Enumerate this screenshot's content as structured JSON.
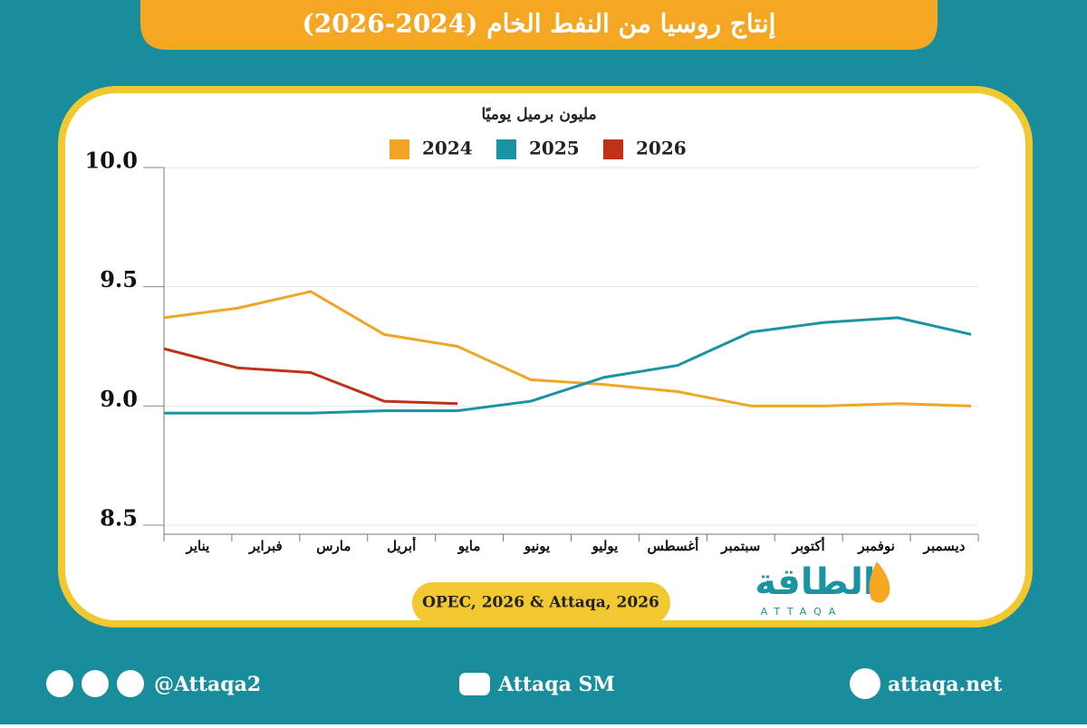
{
  "chart_data": {
    "type": "line",
    "title": "إنتاج روسيا من النفط الخام (2024-2026)",
    "y_label": "مليون برميل يوميًا",
    "categories": [
      "يناير",
      "فبراير",
      "مارس",
      "أبريل",
      "مايو",
      "يونيو",
      "يوليو",
      "أغسطس",
      "سبتمبر",
      "أكتوبر",
      "نوفمبر",
      "ديسمبر"
    ],
    "series": [
      {
        "name": "2024",
        "color": "#f0a524",
        "values": [
          9.37,
          9.41,
          9.48,
          9.3,
          9.25,
          9.11,
          9.09,
          9.06,
          9.0,
          9.0,
          9.01,
          9.0
        ]
      },
      {
        "name": "2025",
        "color": "#1a93a3",
        "values": [
          8.97,
          8.97,
          8.97,
          8.98,
          8.98,
          9.02,
          9.12,
          9.17,
          9.31,
          9.35,
          9.37,
          9.3
        ]
      },
      {
        "name": "2026",
        "color": "#c0311a",
        "values": [
          9.24,
          9.16,
          9.14,
          9.02,
          9.01,
          null,
          null,
          null,
          null,
          null,
          null,
          null
        ]
      }
    ],
    "ylim": [
      8.5,
      10
    ],
    "yticks": [
      8.5,
      {
        "value": 9,
        "label": "9.0"
      },
      9.5,
      {
        "value": 10,
        "label": "10.0"
      }
    ],
    "grid": true,
    "source": "OPEC, 2026 & Attaqa, 2026"
  },
  "logo": {
    "name": "الطاقة",
    "latin": "ATTAQA"
  },
  "footer": {
    "social": "@Attaqa2",
    "youtube": "Attaqa SM",
    "website": "attaqa.net"
  }
}
